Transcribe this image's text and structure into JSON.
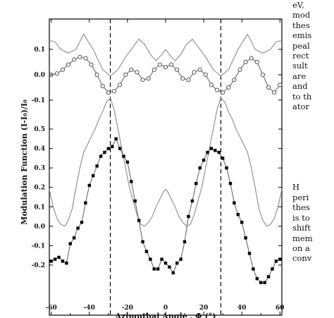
{
  "chart_data": [
    {
      "type": "line",
      "panel": "upper",
      "xlim": [
        -61,
        61
      ],
      "ylim": [
        -0.15,
        0.2
      ],
      "yticks": [
        0.1,
        0.0,
        -0.1
      ],
      "ytick_labels": [
        "0.1",
        "0.0",
        "-0.1"
      ],
      "vlines_dashed": [
        -29,
        29
      ],
      "series": [
        {
          "style": "gray-line",
          "x": [
            -61,
            -58,
            -55,
            -51,
            -47,
            -43,
            -38,
            -33,
            -29,
            -25,
            -21,
            -17,
            -14,
            -11,
            -8,
            -5,
            -2,
            0,
            2,
            5,
            8,
            11,
            14,
            17,
            21,
            25,
            29,
            33,
            38,
            43,
            47,
            51,
            55,
            58,
            61
          ],
          "y": [
            0.135,
            0.13,
            0.1,
            0.085,
            0.1,
            0.16,
            0.1,
            0.02,
            -0.005,
            0.02,
            0.07,
            0.11,
            0.14,
            0.12,
            0.08,
            0.055,
            0.08,
            0.1,
            0.08,
            0.055,
            0.08,
            0.12,
            0.14,
            0.11,
            0.07,
            0.02,
            -0.005,
            0.02,
            0.1,
            0.16,
            0.1,
            0.085,
            0.1,
            0.13,
            0.135
          ]
        },
        {
          "style": "open-circle-markers",
          "x": [
            -60,
            -57,
            -54,
            -51,
            -48,
            -45,
            -42,
            -39,
            -36,
            -33,
            -30,
            -27,
            -24,
            -21,
            -18,
            -15,
            -12,
            -9,
            -6,
            -3,
            0,
            3,
            6,
            9,
            12,
            15,
            18,
            21,
            24,
            27,
            30,
            33,
            36,
            39,
            42,
            45,
            48,
            51,
            54,
            57,
            60
          ],
          "y": [
            0.0,
            0.005,
            0.02,
            0.04,
            0.06,
            0.07,
            0.065,
            0.04,
            0.0,
            -0.045,
            -0.07,
            -0.065,
            -0.04,
            0.0,
            0.02,
            0.01,
            -0.02,
            -0.015,
            0.02,
            0.04,
            0.03,
            0.04,
            0.02,
            -0.015,
            -0.02,
            0.01,
            0.02,
            0.0,
            -0.04,
            -0.06,
            -0.07,
            -0.05,
            -0.02,
            0.02,
            0.05,
            0.065,
            0.05,
            0.0,
            -0.05,
            -0.07,
            -0.04
          ]
        }
      ]
    },
    {
      "type": "line",
      "panel": "lower",
      "xlim": [
        -61,
        61
      ],
      "ylim": [
        -0.36,
        0.62
      ],
      "yticks": [
        0.5,
        0.4,
        0.3,
        0.2,
        0.1,
        0.0,
        -0.1,
        -0.2
      ],
      "ytick_labels": [
        "0.5",
        "0.4",
        "0.3",
        "0.2",
        "0.1",
        "0.0",
        "-0.1",
        "-0.2"
      ],
      "xticks": [
        -60,
        -40,
        -20,
        0,
        20,
        40,
        60
      ],
      "xtick_labels": [
        "-60",
        "-40",
        "-20",
        "0",
        "20",
        "40",
        "60"
      ],
      "ylabel": "Modulation Function (I-I₀)/I₀",
      "xlabel": "Azimuthal Angle , Φ (°)",
      "vlines_dashed": [
        -29,
        29
      ],
      "series": [
        {
          "style": "gray-line",
          "x": [
            -61,
            -59,
            -57,
            -55,
            -53,
            -51,
            -49,
            -47,
            -45,
            -43,
            -41,
            -39,
            -37,
            -35,
            -33,
            -31,
            -29,
            -27,
            -25,
            -23,
            -21,
            -19,
            -17,
            -15,
            -13,
            -11,
            -9,
            -7,
            -5,
            -3,
            -1,
            0,
            1,
            3,
            5,
            7,
            9,
            11,
            13,
            15,
            17,
            19,
            21,
            23,
            25,
            27,
            29,
            31,
            33,
            35,
            37,
            39,
            41,
            43,
            45,
            47,
            49,
            51,
            53,
            55,
            57,
            59,
            61
          ],
          "y": [
            0.19,
            0.1,
            0.04,
            0.01,
            0.0,
            0.03,
            0.09,
            0.2,
            0.3,
            0.38,
            0.42,
            0.46,
            0.5,
            0.55,
            0.59,
            0.64,
            0.66,
            0.6,
            0.5,
            0.4,
            0.3,
            0.2,
            0.13,
            0.06,
            0.01,
            0.0,
            0.02,
            0.05,
            0.1,
            0.14,
            0.18,
            0.19,
            0.18,
            0.14,
            0.1,
            0.05,
            0.02,
            0.0,
            0.01,
            0.06,
            0.13,
            0.2,
            0.3,
            0.4,
            0.5,
            0.6,
            0.66,
            0.64,
            0.59,
            0.55,
            0.5,
            0.46,
            0.42,
            0.38,
            0.3,
            0.2,
            0.09,
            0.03,
            0.0,
            0.01,
            0.04,
            0.1,
            0.19
          ]
        },
        {
          "style": "black-line-square-markers",
          "x": [
            -60,
            -58,
            -56,
            -54,
            -52,
            -50,
            -48,
            -46,
            -44,
            -42,
            -40,
            -38,
            -36,
            -34,
            -32,
            -30,
            -28,
            -26,
            -24,
            -22,
            -20,
            -18,
            -16,
            -14,
            -12,
            -10,
            -8,
            -6,
            -4,
            -2,
            0,
            2,
            4,
            6,
            8,
            10,
            12,
            14,
            16,
            18,
            20,
            22,
            24,
            26,
            28,
            30,
            32,
            34,
            36,
            38,
            40,
            42,
            44,
            46,
            48,
            50,
            52,
            54,
            56,
            58,
            60
          ],
          "y": [
            -0.18,
            -0.17,
            -0.16,
            -0.18,
            -0.19,
            -0.09,
            -0.06,
            -0.01,
            0.02,
            0.12,
            0.21,
            0.26,
            0.31,
            0.36,
            0.38,
            0.4,
            0.41,
            0.45,
            0.4,
            0.36,
            0.33,
            0.23,
            0.13,
            0.03,
            -0.08,
            -0.13,
            -0.17,
            -0.22,
            -0.22,
            -0.17,
            -0.19,
            -0.21,
            -0.24,
            -0.19,
            -0.17,
            -0.08,
            0.05,
            0.13,
            0.22,
            0.3,
            0.34,
            0.38,
            0.4,
            0.39,
            0.38,
            0.35,
            0.3,
            0.22,
            0.12,
            0.06,
            0.02,
            -0.06,
            -0.14,
            -0.22,
            -0.27,
            -0.29,
            -0.29,
            -0.26,
            -0.22,
            -0.18,
            -0.17
          ]
        }
      ]
    }
  ],
  "side_text": {
    "top_lines": [
      "eV,",
      "mod",
      "thes",
      "emis",
      "peal",
      "rect",
      "sult",
      "are",
      "and",
      "to th",
      "ator"
    ],
    "bottom_lines": [
      "H",
      "peri",
      "thes",
      "is to",
      "shift",
      "mem",
      "on a",
      "conv"
    ]
  }
}
